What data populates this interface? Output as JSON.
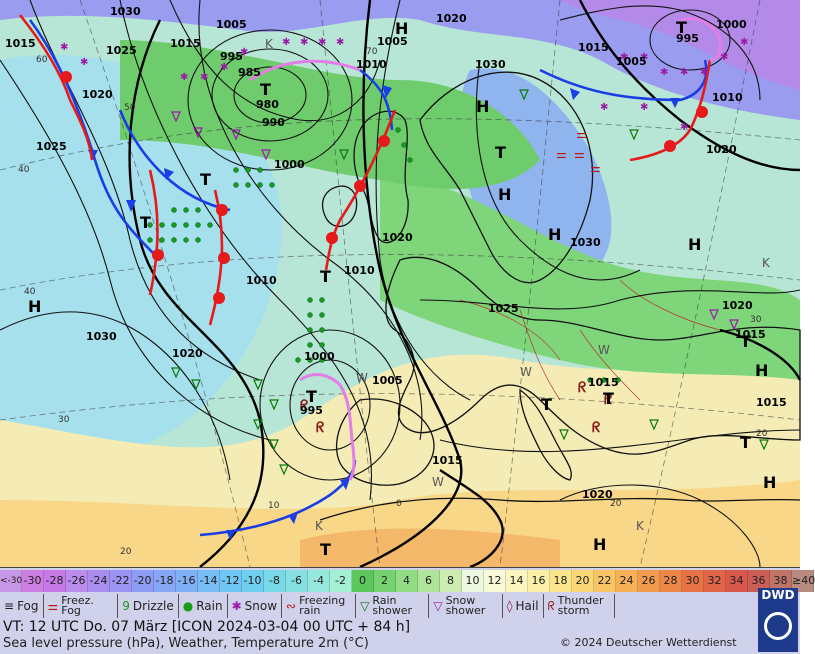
{
  "map": {
    "low_label": "T",
    "high_label": "H",
    "cold_label": "K",
    "warm_label": "W",
    "isobars": [
      "1030",
      "1015",
      "1025",
      "1005",
      "1015",
      "1020",
      "1005",
      "995",
      "985",
      "980",
      "990",
      "1000",
      "1030",
      "1020",
      "995",
      "1000",
      "1015",
      "1005",
      "1010",
      "1025",
      "1020",
      "1010",
      "1010",
      "1030",
      "1025",
      "1030",
      "1020",
      "1010",
      "1000",
      "995",
      "1005",
      "1015",
      "1020",
      "1015",
      "1015",
      "1020",
      "1020",
      "1015"
    ],
    "temps": [
      "60",
      "50",
      "70",
      "40",
      "40",
      "30",
      "20",
      "10",
      "0",
      "20",
      "20",
      "30"
    ]
  },
  "legend": {
    "scale": [
      {
        "label": "<-30",
        "color": "#c896e6"
      },
      {
        "label": "-30",
        "color": "#cc7fe0"
      },
      {
        "label": "-28",
        "color": "#c57ae8"
      },
      {
        "label": "-26",
        "color": "#b98cee"
      },
      {
        "label": "-24",
        "color": "#a98ef0"
      },
      {
        "label": "-22",
        "color": "#9c94f2"
      },
      {
        "label": "-20",
        "color": "#8e9cf4"
      },
      {
        "label": "-18",
        "color": "#86a6f6"
      },
      {
        "label": "-16",
        "color": "#7fb0f6"
      },
      {
        "label": "-14",
        "color": "#78bcf6"
      },
      {
        "label": "-12",
        "color": "#70c6f2"
      },
      {
        "label": "-10",
        "color": "#6fcfee"
      },
      {
        "label": "-8",
        "color": "#78d8e8"
      },
      {
        "label": "-6",
        "color": "#86e0e2"
      },
      {
        "label": "-4",
        "color": "#96e8dc"
      },
      {
        "label": "-2",
        "color": "#a4f0d4"
      },
      {
        "label": "0",
        "color": "#5cc85c"
      },
      {
        "label": "2",
        "color": "#76d270"
      },
      {
        "label": "4",
        "color": "#92dc86"
      },
      {
        "label": "6",
        "color": "#b0e49c"
      },
      {
        "label": "8",
        "color": "#ccecb2"
      },
      {
        "label": "10",
        "color": "#eef8e0"
      },
      {
        "label": "12",
        "color": "#f8fad8"
      },
      {
        "label": "14",
        "color": "#fbf6c0"
      },
      {
        "label": "16",
        "color": "#fbf0a8"
      },
      {
        "label": "18",
        "color": "#fbe68e"
      },
      {
        "label": "20",
        "color": "#fad676"
      },
      {
        "label": "22",
        "color": "#f8c464"
      },
      {
        "label": "24",
        "color": "#f6b056"
      },
      {
        "label": "26",
        "color": "#f29a4e"
      },
      {
        "label": "28",
        "color": "#ee8648"
      },
      {
        "label": "30",
        "color": "#e87246"
      },
      {
        "label": "32",
        "color": "#e06448"
      },
      {
        "label": "34",
        "color": "#d8584c"
      },
      {
        "label": "36",
        "color": "#cc5e58"
      },
      {
        "label": "38",
        "color": "#c07468"
      },
      {
        "label": "≥40",
        "color": "#b88a80"
      }
    ],
    "weather": [
      {
        "symbol": "≡",
        "label": "Fog"
      },
      {
        "symbol": "⚌",
        "label": "Freez. Fog"
      },
      {
        "symbol": "9",
        "label": "Drizzle"
      },
      {
        "symbol": "●",
        "label": "Rain"
      },
      {
        "symbol": "✱",
        "label": "Snow"
      },
      {
        "symbol": "∾",
        "label": "Freezing rain"
      },
      {
        "symbol": "▽",
        "label": "Rain shower"
      },
      {
        "symbol": "▽",
        "label": "Snow shower"
      },
      {
        "symbol": "◊",
        "label": "Hail"
      },
      {
        "symbol": "ᖇ",
        "label": "Thunder storm"
      }
    ],
    "valid_time": "VT: 12 UTC Do.  07 März [ICON 2024-03-04  00 UTC + 84 h]",
    "description": "Sea level pressure (hPa), Weather, Temperature 2m (°C)",
    "copyright": "© 2024 Deutscher Wetterdienst",
    "logo_text": "DWD"
  }
}
